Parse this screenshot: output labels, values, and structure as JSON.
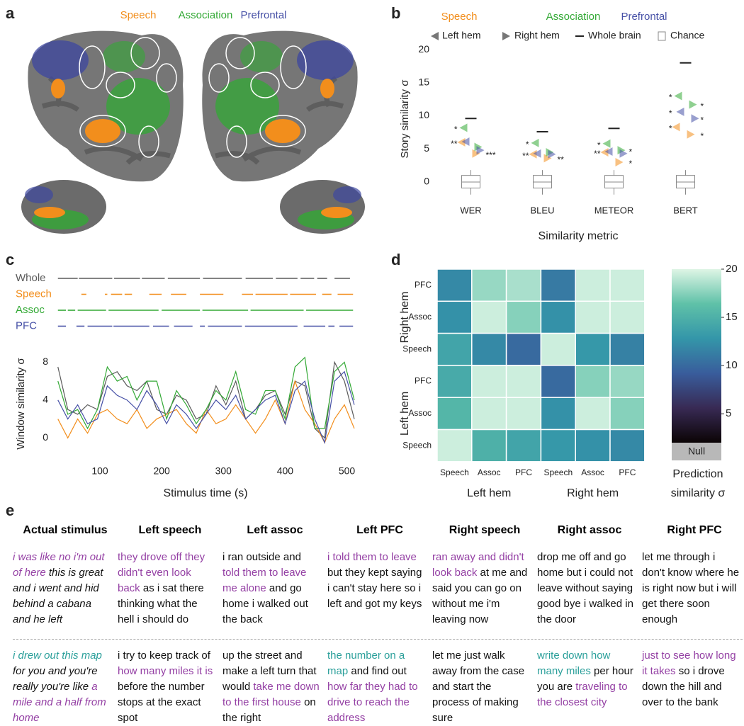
{
  "panel_labels": [
    "a",
    "b",
    "c",
    "d",
    "e"
  ],
  "brain_legend": [
    {
      "name": "Speech",
      "color": "#f28e1c"
    },
    {
      "name": "Association",
      "color": "#33a935"
    },
    {
      "name": "Prefrontal",
      "color": "#4650a6"
    }
  ],
  "chart_data": [
    {
      "type": "dot",
      "categories": [
        "WER",
        "BLEU",
        "METEOR",
        "BERT"
      ],
      "ylabel": "Story similarity σ",
      "xlabel": "Similarity metric",
      "ylim": [
        -2,
        21
      ],
      "yticks": [
        0,
        5,
        10,
        15,
        20
      ],
      "hemisphere_labels": [
        "Left hem",
        "Right hem"
      ],
      "series": [
        {
          "name": "Speech",
          "color": "#f28e1c",
          "left_values": [
            6.0,
            4.2,
            4.5,
            8.3
          ],
          "right_values": [
            4.3,
            3.6,
            3.0,
            7.2
          ],
          "left_labels": [
            "**",
            "**",
            "**",
            "*"
          ],
          "right_labels": [
            "***",
            "**",
            "*",
            "*"
          ]
        },
        {
          "name": "Association",
          "color": "#33a935",
          "left_values": [
            8.2,
            5.9,
            5.8,
            13.0
          ],
          "right_values": [
            5.3,
            4.5,
            4.8,
            11.7
          ],
          "left_labels": [
            "*",
            "*",
            "*",
            "*"
          ],
          "right_labels": [
            null,
            null,
            "*",
            "*"
          ]
        },
        {
          "name": "Prefrontal",
          "color": "#4650a6",
          "left_values": [
            6.1,
            4.3,
            4.6,
            10.6
          ],
          "right_values": [
            4.8,
            4.2,
            4.3,
            9.6
          ],
          "left_labels": [
            null,
            null,
            null,
            "*"
          ],
          "right_labels": [
            null,
            null,
            null,
            "*"
          ]
        }
      ],
      "whole_brain": {
        "name": "Whole brain",
        "color": "#222222",
        "values": [
          9.6,
          7.6,
          8.1,
          18.0
        ]
      },
      "chance": {
        "name": "Chance",
        "color": "#8a8a8a",
        "low": [
          -1.9,
          -1.9,
          -1.9,
          -1.9
        ],
        "q1": [
          -0.9,
          -0.9,
          -0.9,
          -0.9
        ],
        "median": [
          0,
          0,
          0,
          0
        ],
        "q3": [
          1.0,
          1.0,
          1.0,
          1.0
        ],
        "high": [
          1.8,
          1.8,
          1.8,
          1.8
        ]
      }
    },
    {
      "type": "line",
      "xlabel": "Stimulus time (s)",
      "ylabel": "Window similarity σ",
      "xlim": [
        30,
        512
      ],
      "ylim": [
        -2,
        9
      ],
      "xticks": [
        100,
        200,
        300,
        400,
        500
      ],
      "yticks": [
        0,
        4,
        8
      ],
      "x": [
        32,
        48,
        64,
        80,
        96,
        112,
        128,
        144,
        160,
        176,
        192,
        208,
        224,
        240,
        256,
        272,
        288,
        304,
        320,
        336,
        352,
        368,
        384,
        400,
        416,
        432,
        448,
        464,
        480,
        496,
        512
      ],
      "series": [
        {
          "name": "Whole",
          "color": "#5a5a5a",
          "values": [
            7.5,
            3,
            2.5,
            3.5,
            3,
            6.5,
            7,
            5.5,
            5,
            6,
            3,
            2.5,
            4.5,
            4,
            2,
            2.5,
            5.5,
            3.5,
            6,
            2,
            3,
            4.5,
            5,
            2.5,
            6,
            5.5,
            1,
            0,
            8,
            6,
            2
          ]
        },
        {
          "name": "Speech",
          "color": "#f28e1c",
          "values": [
            2,
            0,
            2,
            0.5,
            2.5,
            3,
            2,
            1.5,
            3,
            1,
            2,
            2.5,
            3,
            1.5,
            0.5,
            3,
            1.5,
            2,
            3.5,
            2,
            0.5,
            2,
            4,
            1.5,
            6,
            3,
            1.5,
            -0.5,
            2,
            3.5,
            1
          ]
        },
        {
          "name": "Assoc",
          "color": "#33a935",
          "values": [
            6,
            2.5,
            3,
            1,
            3,
            7.5,
            6,
            6.5,
            4,
            6,
            6,
            2,
            5,
            3.5,
            1.5,
            3,
            5,
            4,
            7,
            3,
            2.5,
            5,
            5,
            2,
            7.5,
            8.5,
            1,
            1,
            7,
            8,
            4
          ]
        },
        {
          "name": "PFC",
          "color": "#4650a6",
          "values": [
            4,
            2,
            3.5,
            1.5,
            2,
            5.5,
            4.5,
            4,
            3,
            5,
            3.5,
            1.5,
            3.5,
            2.5,
            1,
            2.5,
            4,
            3,
            4.5,
            2,
            3,
            4,
            4.5,
            1.5,
            5,
            6,
            2,
            -0.5,
            6,
            7,
            3.5
          ]
        }
      ],
      "significance": [
        {
          "name": "Whole",
          "color": "#5a5a5a",
          "segments": [
            [
              32,
              64
            ],
            [
              66,
              120
            ],
            [
              123,
              165
            ],
            [
              168,
              205
            ],
            [
              210,
              262
            ],
            [
              267,
              330
            ],
            [
              336,
              380
            ],
            [
              385,
              420
            ],
            [
              425,
              447
            ],
            [
              452,
              468
            ],
            [
              480,
              505
            ]
          ]
        },
        {
          "name": "Speech",
          "color": "#f28e1c",
          "segments": [
            [
              70,
              78
            ],
            [
              108,
              112
            ],
            [
              118,
              136
            ],
            [
              140,
              152
            ],
            [
              180,
              200
            ],
            [
              215,
              240
            ],
            [
              262,
              300
            ],
            [
              330,
              348
            ],
            [
              352,
              404
            ],
            [
              408,
              450
            ],
            [
              460,
              475
            ],
            [
              485,
              510
            ]
          ]
        },
        {
          "name": "Assoc",
          "color": "#33a935",
          "segments": [
            [
              32,
              45
            ],
            [
              48,
              60
            ],
            [
              64,
              110
            ],
            [
              114,
              195
            ],
            [
              200,
              262
            ],
            [
              266,
              340
            ],
            [
              344,
              430
            ],
            [
              434,
              510
            ]
          ]
        },
        {
          "name": "PFC",
          "color": "#4650a6",
          "segments": [
            [
              32,
              45
            ],
            [
              62,
              75
            ],
            [
              80,
              120
            ],
            [
              122,
              180
            ],
            [
              186,
              212
            ],
            [
              220,
              250
            ],
            [
              262,
              270
            ],
            [
              275,
              330
            ],
            [
              335,
              420
            ],
            [
              430,
              465
            ],
            [
              470,
              480
            ],
            [
              488,
              510
            ]
          ]
        }
      ]
    },
    {
      "type": "heatmap",
      "values": [
        [
          12,
          18,
          18.5,
          11,
          19.5,
          19.5
        ],
        [
          12.5,
          19.5,
          17.5,
          12.5,
          19.5,
          19.5
        ],
        [
          14,
          12,
          10,
          19.5,
          13,
          11.5
        ],
        [
          14.5,
          19.5,
          19.5,
          10,
          17.5,
          18
        ],
        [
          15.5,
          19.5,
          19.5,
          12.5,
          19.5,
          17.5
        ],
        [
          19.5,
          15,
          14,
          13,
          12.5,
          12
        ]
      ],
      "row_groups": [
        {
          "label": "Right hem",
          "rows": [
            "PFC",
            "Assoc",
            "Speech"
          ]
        },
        {
          "label": "Left hem",
          "rows": [
            "PFC",
            "Assoc",
            "Speech"
          ]
        }
      ],
      "column_groups": [
        {
          "label": "Left hem",
          "columns": [
            "Speech",
            "Assoc",
            "PFC"
          ]
        },
        {
          "label": "Right hem",
          "columns": [
            "Speech",
            "Assoc",
            "PFC"
          ]
        }
      ],
      "clim": [
        2,
        20
      ],
      "cticks": [
        5,
        10,
        15,
        20
      ],
      "colormap": [
        "#0b0405",
        "#382a54",
        "#395d9c",
        "#3496a9",
        "#5fc1a8",
        "#def5e5"
      ],
      "null_label": "Null",
      "null_color": "#b8b8b8",
      "colorbar_label": [
        "Prediction",
        "similarity σ"
      ]
    }
  ],
  "table": {
    "columns": [
      "Actual stimulus",
      "Left speech",
      "Left assoc",
      "Left PFC",
      "Right speech",
      "Right assoc",
      "Right PFC"
    ],
    "italic_column": 0,
    "styles": {
      "plain": "#111111",
      "purple": "#9440a4",
      "teal": "#2a9f9a"
    },
    "rows": [
      [
        [
          {
            "text": "i was like no i'm out of here",
            "style": "purple"
          },
          {
            "text": " this is great and i went and hid behind a cabana and he left",
            "style": "plain"
          }
        ],
        [
          {
            "text": "they drove off they didn't even look back",
            "style": "purple"
          },
          {
            "text": " as i sat there thinking what the hell i should do",
            "style": "plain"
          }
        ],
        [
          {
            "text": "i ran outside and ",
            "style": "plain"
          },
          {
            "text": "told them to leave me alone",
            "style": "purple"
          },
          {
            "text": " and go home i walked out the back",
            "style": "plain"
          }
        ],
        [
          {
            "text": "i told them to leave",
            "style": "purple"
          },
          {
            "text": " but they kept saying i can't stay here so i left and got my keys",
            "style": "plain"
          }
        ],
        [
          {
            "text": "ran away and didn't look back",
            "style": "purple"
          },
          {
            "text": " at me and said you can go on without me i'm leaving now",
            "style": "plain"
          }
        ],
        [
          {
            "text": "drop me off and go home but i could not leave without saying good bye i walked in the door",
            "style": "plain"
          }
        ],
        [
          {
            "text": "let me through i don't know where he is right now but i will get there soon enough",
            "style": "plain"
          }
        ]
      ],
      [
        [
          {
            "text": "i drew out this map",
            "style": "teal"
          },
          {
            "text": " for you and you're really you're like ",
            "style": "plain"
          },
          {
            "text": "a mile and a half from home",
            "style": "purple"
          }
        ],
        [
          {
            "text": "i try to keep track of ",
            "style": "plain"
          },
          {
            "text": "how many miles it is",
            "style": "purple"
          },
          {
            "text": " before the number stops at the exact spot",
            "style": "plain"
          }
        ],
        [
          {
            "text": "up the street and make a left turn that would ",
            "style": "plain"
          },
          {
            "text": "take me down to the first house",
            "style": "purple"
          },
          {
            "text": " on the right",
            "style": "plain"
          }
        ],
        [
          {
            "text": "the number on a map",
            "style": "teal"
          },
          {
            "text": " and find out ",
            "style": "plain"
          },
          {
            "text": "how far they had to drive to reach the address",
            "style": "purple"
          }
        ],
        [
          {
            "text": "let me just walk away from the case and start the process of making sure",
            "style": "plain"
          }
        ],
        [
          {
            "text": "write down how many miles",
            "style": "teal"
          },
          {
            "text": " per hour you are ",
            "style": "plain"
          },
          {
            "text": "traveling to the closest city",
            "style": "purple"
          }
        ],
        [
          {
            "text": "just to see how long it takes",
            "style": "purple"
          },
          {
            "text": " so i drove down the hill and over to the bank",
            "style": "plain"
          }
        ]
      ]
    ]
  }
}
